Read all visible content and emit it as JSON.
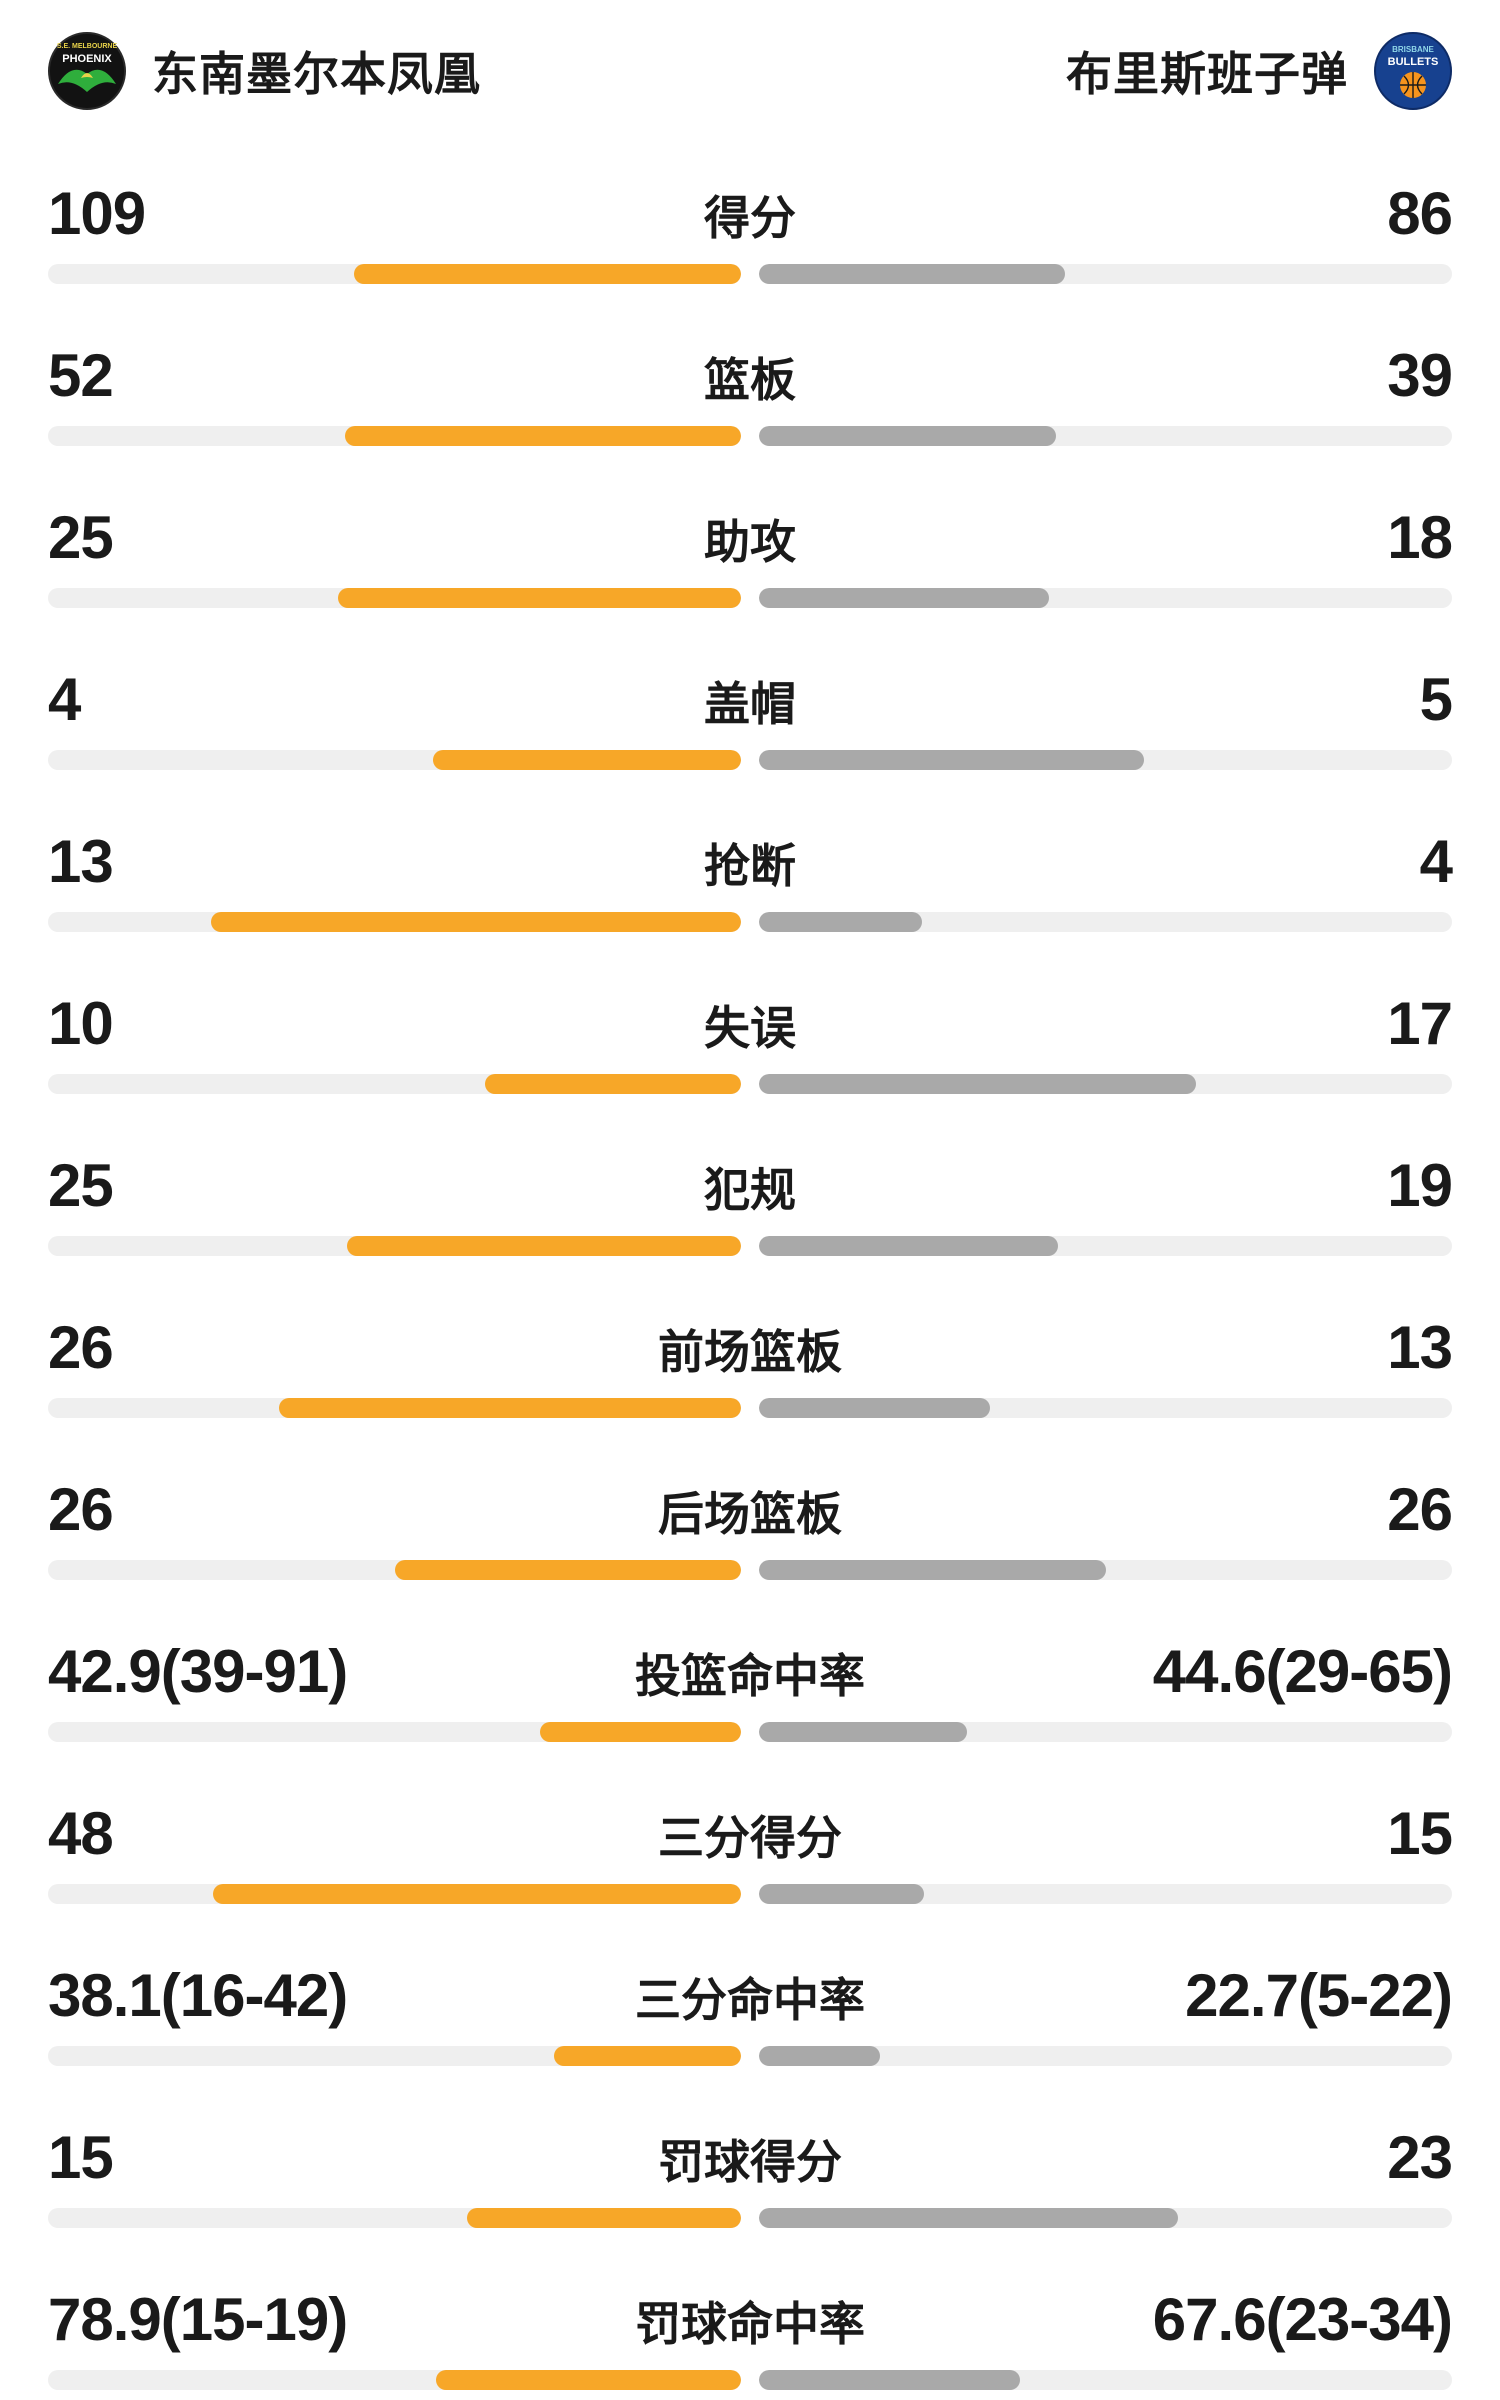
{
  "header": {
    "left_team": {
      "name": "东南墨尔本凤凰",
      "badge_top": "S.E. MELBOURNE",
      "badge_main": "PHOENIX"
    },
    "right_team": {
      "name": "布里斯班子弹",
      "badge_top": "BRISBANE",
      "badge_main": "BULLETS"
    }
  },
  "colors": {
    "left_bar": "#F7A728",
    "right_bar": "#A9A9A9",
    "bar_track": "#EFEFEF",
    "text": "#1A1A1A",
    "phoenix_green": "#2FAE3C",
    "phoenix_black": "#121212",
    "bullets_blue": "#17418F",
    "basketball_orange": "#F7941D"
  },
  "chart_data": {
    "type": "bar",
    "layout": "tornado-comparison",
    "legend_position": "header",
    "teams": [
      "东南墨尔本凤凰",
      "布里斯班子弹"
    ],
    "categories": [
      "得分",
      "篮板",
      "助攻",
      "盖帽",
      "抢断",
      "失误",
      "犯规",
      "前场篮板",
      "后场篮板",
      "投篮命中率",
      "三分得分",
      "三分命中率",
      "罚球得分",
      "罚球命中率"
    ],
    "series": [
      {
        "name": "东南墨尔本凤凰",
        "values": [
          109,
          52,
          25,
          4,
          13,
          10,
          25,
          26,
          26,
          42.9,
          48,
          38.1,
          15,
          78.9
        ]
      },
      {
        "name": "布里斯班子弹",
        "values": [
          86,
          39,
          18,
          5,
          4,
          17,
          19,
          13,
          26,
          44.6,
          15,
          22.7,
          23,
          67.6
        ]
      }
    ],
    "rows": [
      {
        "label": "得分",
        "left": "109",
        "right": "86",
        "left_bar": 55.9,
        "right_bar": 44.1
      },
      {
        "label": "篮板",
        "left": "52",
        "right": "39",
        "left_bar": 57.1,
        "right_bar": 42.9
      },
      {
        "label": "助攻",
        "left": "25",
        "right": "18",
        "left_bar": 58.1,
        "right_bar": 41.9
      },
      {
        "label": "盖帽",
        "left": "4",
        "right": "5",
        "left_bar": 44.4,
        "right_bar": 55.6
      },
      {
        "label": "抢断",
        "left": "13",
        "right": "4",
        "left_bar": 76.5,
        "right_bar": 23.5
      },
      {
        "label": "失误",
        "left": "10",
        "right": "17",
        "left_bar": 37.0,
        "right_bar": 63.0
      },
      {
        "label": "犯规",
        "left": "25",
        "right": "19",
        "left_bar": 56.8,
        "right_bar": 43.2
      },
      {
        "label": "前场篮板",
        "left": "26",
        "right": "13",
        "left_bar": 66.7,
        "right_bar": 33.3
      },
      {
        "label": "后场篮板",
        "left": "26",
        "right": "26",
        "left_bar": 50.0,
        "right_bar": 50.0
      },
      {
        "label": "投篮命中率",
        "left": "42.9(39-91)",
        "right": "44.6(29-65)",
        "left_bar": 29.0,
        "right_bar": 30.0
      },
      {
        "label": "三分得分",
        "left": "48",
        "right": "15",
        "left_bar": 76.2,
        "right_bar": 23.8
      },
      {
        "label": "三分命中率",
        "left": "38.1(16-42)",
        "right": "22.7(5-22)",
        "left_bar": 27.0,
        "right_bar": 17.5
      },
      {
        "label": "罚球得分",
        "left": "15",
        "right": "23",
        "left_bar": 39.5,
        "right_bar": 60.5
      },
      {
        "label": "罚球命中率",
        "left": "78.9(15-19)",
        "right": "67.6(23-34)",
        "left_bar": 44.0,
        "right_bar": 37.7
      }
    ]
  }
}
